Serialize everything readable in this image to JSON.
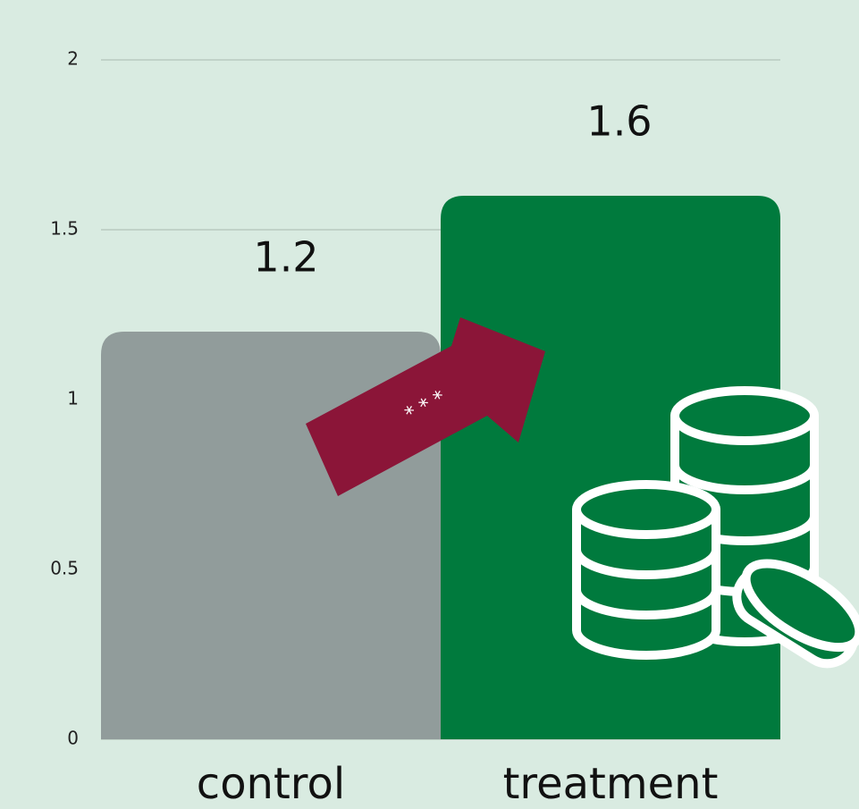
{
  "chart_data": {
    "type": "bar",
    "categories": [
      "control",
      "treatment"
    ],
    "values": [
      1.2,
      1.6
    ],
    "colors": [
      "#919c9b",
      "#007a3d"
    ],
    "ylim": [
      0,
      2
    ],
    "yticks": [
      0,
      0.5,
      1,
      1.5,
      2
    ],
    "grid": true,
    "annotation": "* * *"
  }
}
